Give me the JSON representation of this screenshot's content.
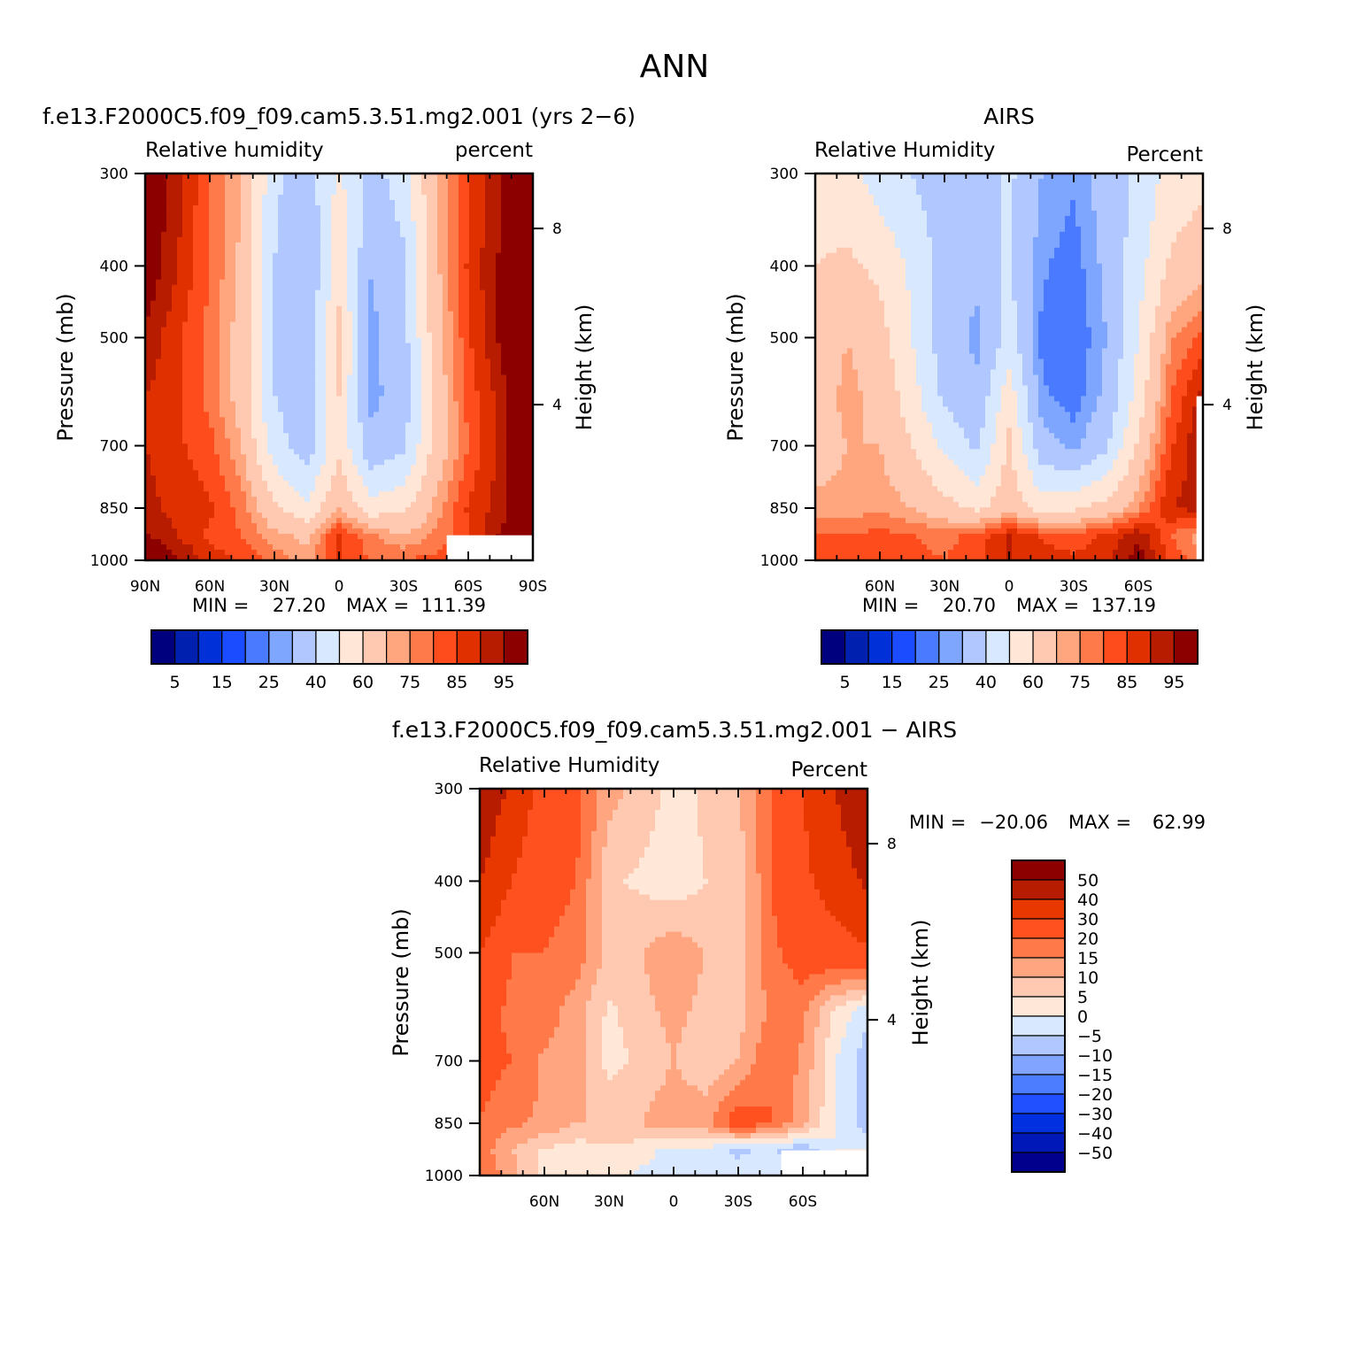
{
  "figure": {
    "title": "ANN"
  },
  "colors": {
    "rh_palette": [
      "#00007f",
      "#0020b0",
      "#0030d8",
      "#1c4cff",
      "#4a7aff",
      "#7fa6ff",
      "#b0c8ff",
      "#d8e8ff",
      "#ffe6d6",
      "#ffc8b0",
      "#ffa67f",
      "#ff7a4a",
      "#ff4c1c",
      "#e03000",
      "#b81c00",
      "#8c0000"
    ],
    "diff_palette": [
      "#00008c",
      "#0018b8",
      "#0030e0",
      "#2050ff",
      "#4c7cff",
      "#80a4ff",
      "#b0c8ff",
      "#d8e8ff",
      "#ffe8d8",
      "#ffc8b0",
      "#ffa680",
      "#ff7a48",
      "#ff5020",
      "#e83800",
      "#b81c00",
      "#8c0000"
    ]
  },
  "panels": [
    {
      "id": "model",
      "title": "f.e13.F2000C5.f09_f09.cam5.3.51.mg2.001 (yrs 2−6)",
      "left_label": "Relative humidity",
      "right_label": "percent",
      "ylabel": "Pressure (mb)",
      "y2label": "Height (km)",
      "pressure_ticks": [
        "300",
        "400",
        "500",
        "700",
        "850",
        "1000"
      ],
      "height_ticks": [
        "8",
        "4"
      ],
      "lat_ticks": [
        "90N",
        "60N",
        "30N",
        "0",
        "30S",
        "60S",
        "90S"
      ],
      "min_label": "MIN =",
      "min_value": "27.20",
      "max_label": "MAX =",
      "max_value": "111.39",
      "colorbar_labels": [
        "5",
        "15",
        "25",
        "40",
        "60",
        "75",
        "85",
        "95"
      ]
    },
    {
      "id": "obs",
      "title": "AIRS",
      "left_label": "Relative Humidity",
      "right_label": "Percent",
      "ylabel": "Pressure (mb)",
      "y2label": "Height (km)",
      "pressure_ticks": [
        "300",
        "400",
        "500",
        "700",
        "850",
        "1000"
      ],
      "height_ticks": [
        "8",
        "4"
      ],
      "lat_ticks": [
        "60N",
        "30N",
        "0",
        "30S",
        "60S"
      ],
      "min_label": "MIN =",
      "min_value": "20.70",
      "max_label": "MAX =",
      "max_value": "137.19",
      "colorbar_labels": [
        "5",
        "15",
        "25",
        "40",
        "60",
        "75",
        "85",
        "95"
      ]
    },
    {
      "id": "diff",
      "title": "f.e13.F2000C5.f09_f09.cam5.3.51.mg2.001 − AIRS",
      "left_label": "Relative Humidity",
      "right_label": "Percent",
      "ylabel": "Pressure (mb)",
      "y2label": "Height (km)",
      "pressure_ticks": [
        "300",
        "400",
        "500",
        "700",
        "850",
        "1000"
      ],
      "height_ticks": [
        "8",
        "4"
      ],
      "lat_ticks": [
        "60N",
        "30N",
        "0",
        "30S",
        "60S"
      ],
      "min_label": "MIN =",
      "min_value": "−20.06",
      "max_label": "MAX =",
      "max_value": "62.99",
      "colorbar_labels": [
        "50",
        "40",
        "30",
        "20",
        "15",
        "10",
        "5",
        "0",
        "−5",
        "−10",
        "−15",
        "−20",
        "−30",
        "−40",
        "−50"
      ]
    }
  ],
  "chart_data": [
    {
      "type": "heatmap",
      "title": "f.e13.F2000C5.f09_f09.cam5.3.51.mg2.001 (yrs 2−6)",
      "xlabel": "",
      "ylabel": "Pressure (mb)",
      "x": [
        -90,
        -75,
        -60,
        -45,
        -30,
        -15,
        0,
        15,
        30,
        45,
        60,
        75,
        90
      ],
      "y": [
        300,
        400,
        500,
        600,
        700,
        850,
        925,
        1000
      ],
      "xlim": [
        -90,
        90
      ],
      "ylim": [
        1000,
        300
      ],
      "colorbar_levels": [
        5,
        10,
        15,
        20,
        25,
        30,
        40,
        50,
        60,
        70,
        75,
        80,
        85,
        90,
        95
      ],
      "missing_region": {
        "x": [
          50,
          90
        ],
        "y": [
          925,
          1000
        ]
      },
      "z": [
        [
          102,
          92,
          80,
          70,
          42,
          34,
          52,
          36,
          45,
          70,
          84,
          94,
          104
        ],
        [
          100,
          90,
          80,
          68,
          40,
          30,
          58,
          30,
          38,
          68,
          86,
          96,
          108
        ],
        [
          94,
          86,
          78,
          66,
          38,
          30,
          62,
          28,
          36,
          66,
          84,
          96,
          110
        ],
        [
          90,
          86,
          78,
          66,
          40,
          32,
          60,
          28,
          34,
          64,
          82,
          92,
          108
        ],
        [
          90,
          86,
          82,
          70,
          45,
          34,
          58,
          32,
          38,
          64,
          80,
          92,
          108
        ],
        [
          92,
          88,
          86,
          78,
          62,
          52,
          70,
          54,
          58,
          72,
          86,
          92,
          104
        ],
        [
          96,
          90,
          84,
          80,
          72,
          68,
          86,
          76,
          70,
          76,
          84,
          96,
          104
        ],
        [
          104,
          96,
          88,
          84,
          78,
          72,
          86,
          80,
          80,
          82,
          88,
          96,
          104
        ]
      ]
    },
    {
      "type": "heatmap",
      "title": "AIRS",
      "xlabel": "",
      "ylabel": "Pressure (mb)",
      "x": [
        -90,
        -75,
        -60,
        -45,
        -30,
        -15,
        0,
        15,
        30,
        45,
        60,
        75,
        90
      ],
      "y": [
        300,
        400,
        500,
        600,
        700,
        850,
        925,
        1000
      ],
      "xlim": [
        -90,
        90
      ],
      "ylim": [
        1000,
        300
      ],
      "colorbar_levels": [
        5,
        10,
        15,
        20,
        25,
        30,
        40,
        50,
        60,
        70,
        75,
        80,
        85,
        90,
        95
      ],
      "missing_region": {
        "x": [
          87,
          90
        ],
        "y": [
          600,
          1000
        ]
      },
      "z": [
        [
          56,
          54,
          45,
          40,
          34,
          36,
          42,
          30,
          26,
          34,
          42,
          54,
          58
        ],
        [
          60,
          62,
          58,
          48,
          36,
          32,
          42,
          26,
          22,
          32,
          46,
          62,
          66
        ],
        [
          64,
          70,
          64,
          50,
          34,
          28,
          44,
          24,
          20,
          30,
          50,
          74,
          82
        ],
        [
          66,
          72,
          68,
          54,
          38,
          32,
          56,
          26,
          22,
          32,
          54,
          80,
          92
        ],
        [
          66,
          70,
          70,
          60,
          48,
          38,
          62,
          34,
          28,
          38,
          62,
          84,
          96
        ],
        [
          72,
          72,
          74,
          70,
          64,
          58,
          66,
          56,
          58,
          64,
          74,
          90,
          92
        ],
        [
          80,
          80,
          82,
          80,
          78,
          82,
          90,
          84,
          82,
          86,
          94,
          80,
          72
        ],
        [
          84,
          80,
          84,
          82,
          80,
          84,
          90,
          88,
          86,
          88,
          98,
          84,
          76
        ]
      ]
    },
    {
      "type": "heatmap",
      "title": "f.e13.F2000C5.f09_f09.cam5.3.51.mg2.001 − AIRS",
      "xlabel": "",
      "ylabel": "Pressure (mb)",
      "x": [
        -90,
        -75,
        -60,
        -45,
        -30,
        -15,
        0,
        15,
        30,
        45,
        60,
        75,
        90
      ],
      "y": [
        300,
        400,
        500,
        600,
        700,
        850,
        925,
        1000
      ],
      "xlim": [
        -90,
        90
      ],
      "ylim": [
        1000,
        300
      ],
      "colorbar_levels": [
        -50,
        -40,
        -30,
        -20,
        -15,
        -10,
        -5,
        0,
        5,
        10,
        15,
        20,
        30,
        40,
        50
      ],
      "missing_region": {
        "x": [
          50,
          90
        ],
        "y": [
          925,
          1000
        ]
      },
      "z": [
        [
          48,
          38,
          26,
          22,
          12,
          8,
          3,
          6,
          10,
          20,
          30,
          40,
          50
        ],
        [
          40,
          30,
          22,
          20,
          6,
          4,
          2,
          5,
          6,
          20,
          28,
          34,
          42
        ],
        [
          30,
          20,
          20,
          18,
          8,
          10,
          14,
          10,
          8,
          18,
          24,
          26,
          28
        ],
        [
          24,
          18,
          18,
          12,
          4,
          8,
          12,
          8,
          8,
          16,
          16,
          4,
          -4
        ],
        [
          22,
          20,
          14,
          12,
          3,
          6,
          10,
          6,
          10,
          20,
          14,
          0,
          -8
        ],
        [
          20,
          16,
          14,
          10,
          10,
          10,
          14,
          14,
          24,
          20,
          12,
          0,
          -8
        ],
        [
          18,
          10,
          4,
          2,
          3,
          2,
          -2,
          -2,
          -6,
          -4,
          -10,
          0,
          0
        ],
        [
          20,
          12,
          3,
          2,
          2,
          -1,
          -3,
          -4,
          -3,
          0,
          0,
          0,
          0
        ]
      ]
    }
  ]
}
